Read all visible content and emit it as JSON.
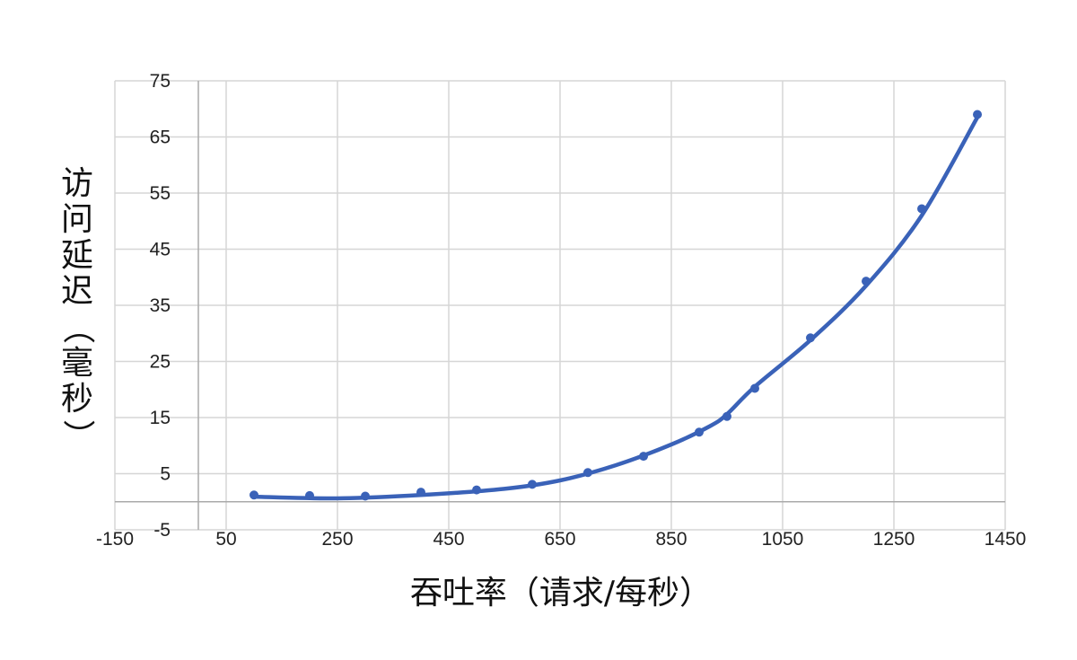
{
  "chart_data": {
    "type": "scatter",
    "title": "",
    "xlabel": "吞吐率（请求/每秒）",
    "ylabel": "访问延迟（毫秒）",
    "xlim": [
      -150,
      1450
    ],
    "ylim": [
      -5,
      75
    ],
    "x_ticks": [
      -150,
      50,
      250,
      450,
      650,
      850,
      1050,
      1250,
      1450
    ],
    "y_ticks": [
      -5,
      5,
      15,
      25,
      35,
      45,
      55,
      65,
      75
    ],
    "grid": true,
    "legend": "none",
    "series": [
      {
        "values_x": [
          100,
          200,
          300,
          400,
          500,
          600,
          700,
          800,
          900,
          950,
          1000,
          1100,
          1200,
          1300,
          1400
        ],
        "values_y": [
          1.2,
          1.1,
          1.0,
          1.7,
          2.1,
          3.1,
          5.2,
          8.1,
          12.4,
          15.2,
          20.2,
          29.2,
          39.3,
          52.2,
          69.0
        ]
      }
    ],
    "trendline": {
      "x": [
        100,
        250,
        400,
        550,
        650,
        750,
        850,
        920,
        950,
        1000,
        1100,
        1200,
        1300,
        1400
      ],
      "y": [
        0.9,
        0.6,
        1.2,
        2.3,
        3.8,
        6.5,
        10.2,
        13.5,
        15.6,
        20.5,
        28.8,
        38.5,
        51.0,
        68.5
      ]
    },
    "colors": {
      "series": "#3a62b8",
      "grid": "#d6d6d6",
      "axis": "#aaaaaa"
    }
  }
}
